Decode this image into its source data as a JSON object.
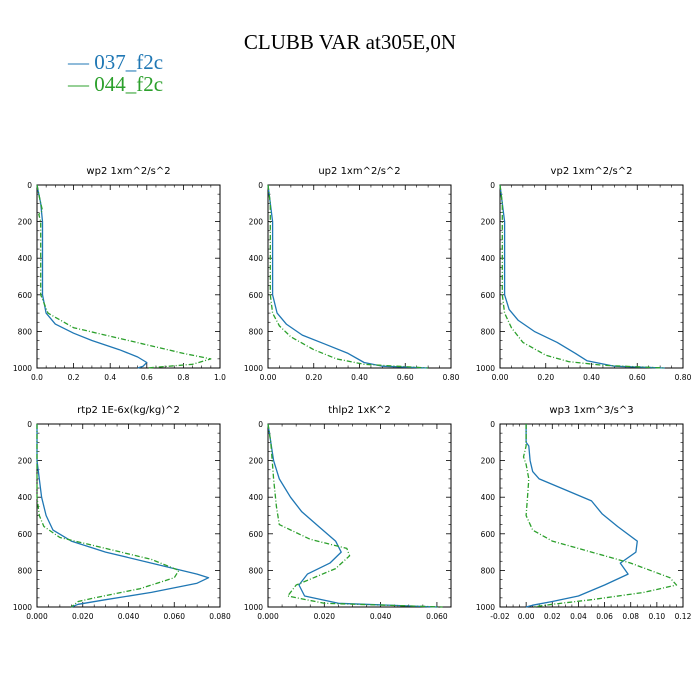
{
  "title": "CLUBB VAR at305E,0N",
  "legend": [
    {
      "label": "— 037_f2c",
      "color": "#1f77b4"
    },
    {
      "label": "— 044_f2c",
      "color": "#2ca02c"
    }
  ],
  "chart_data": [
    {
      "type": "line",
      "title": "wp2  1xm^2/s^2",
      "xlim": [
        0,
        1.0
      ],
      "ylim": [
        1000,
        0
      ],
      "xticks": [
        0.0,
        0.2,
        0.4,
        0.6,
        0.8,
        1.0
      ],
      "xtick_labels": [
        "0.0",
        "0.2",
        "0.4",
        "0.6",
        "0.8",
        "1.0"
      ],
      "yticks": [
        0,
        200,
        400,
        600,
        800,
        1000
      ],
      "ytick_labels": [
        "0",
        "200",
        "400",
        "600",
        "800",
        "1000"
      ],
      "series": [
        {
          "color": "#1f77b4",
          "dash": "solid",
          "points": [
            [
              0.0,
              0
            ],
            [
              0.01,
              50
            ],
            [
              0.02,
              100
            ],
            [
              0.03,
              200
            ],
            [
              0.03,
              400
            ],
            [
              0.03,
              600
            ],
            [
              0.05,
              700
            ],
            [
              0.1,
              760
            ],
            [
              0.2,
              810
            ],
            [
              0.3,
              850
            ],
            [
              0.45,
              900
            ],
            [
              0.55,
              940
            ],
            [
              0.6,
              970
            ],
            [
              0.58,
              990
            ],
            [
              0.55,
              1000
            ]
          ]
        },
        {
          "color": "#2ca02c",
          "dash": "dashed",
          "points": [
            [
              0.0,
              0
            ],
            [
              0.02,
              100
            ],
            [
              0.03,
              140
            ],
            [
              0.01,
              160
            ],
            [
              0.02,
              200
            ],
            [
              0.02,
              400
            ],
            [
              0.02,
              600
            ],
            [
              0.06,
              700
            ],
            [
              0.2,
              780
            ],
            [
              0.5,
              850
            ],
            [
              0.8,
              920
            ],
            [
              0.95,
              950
            ],
            [
              0.85,
              980
            ],
            [
              0.6,
              1000
            ]
          ]
        }
      ]
    },
    {
      "type": "line",
      "title": "up2  1xm^2/s^2",
      "xlim": [
        0,
        0.8
      ],
      "ylim": [
        1000,
        0
      ],
      "xticks": [
        0.0,
        0.2,
        0.4,
        0.6,
        0.8
      ],
      "xtick_labels": [
        "0.00",
        "0.20",
        "0.40",
        "0.60",
        "0.80"
      ],
      "yticks": [
        0,
        200,
        400,
        600,
        800,
        1000
      ],
      "ytick_labels": [
        "0",
        "200",
        "400",
        "600",
        "800",
        "1000"
      ],
      "series": [
        {
          "color": "#1f77b4",
          "dash": "solid",
          "points": [
            [
              0.0,
              0
            ],
            [
              0.01,
              100
            ],
            [
              0.02,
              200
            ],
            [
              0.02,
              400
            ],
            [
              0.02,
              600
            ],
            [
              0.04,
              700
            ],
            [
              0.08,
              760
            ],
            [
              0.15,
              820
            ],
            [
              0.25,
              870
            ],
            [
              0.35,
              920
            ],
            [
              0.42,
              970
            ],
            [
              0.5,
              990
            ],
            [
              0.7,
              1000
            ]
          ]
        },
        {
          "color": "#2ca02c",
          "dash": "dashed",
          "points": [
            [
              0.0,
              0
            ],
            [
              0.01,
              100
            ],
            [
              0.01,
              200
            ],
            [
              0.01,
              400
            ],
            [
              0.01,
              600
            ],
            [
              0.02,
              700
            ],
            [
              0.05,
              770
            ],
            [
              0.1,
              830
            ],
            [
              0.2,
              900
            ],
            [
              0.3,
              950
            ],
            [
              0.42,
              980
            ],
            [
              0.7,
              1000
            ]
          ]
        }
      ]
    },
    {
      "type": "line",
      "title": "vp2  1xm^2/s^2",
      "xlim": [
        0,
        0.8
      ],
      "ylim": [
        1000,
        0
      ],
      "xticks": [
        0.0,
        0.2,
        0.4,
        0.6,
        0.8
      ],
      "xtick_labels": [
        "0.00",
        "0.20",
        "0.40",
        "0.60",
        "0.80"
      ],
      "yticks": [
        0,
        200,
        400,
        600,
        800,
        1000
      ],
      "ytick_labels": [
        "0",
        "200",
        "400",
        "600",
        "800",
        "1000"
      ],
      "series": [
        {
          "color": "#1f77b4",
          "dash": "solid",
          "points": [
            [
              0.0,
              0
            ],
            [
              0.01,
              100
            ],
            [
              0.02,
              200
            ],
            [
              0.02,
              400
            ],
            [
              0.02,
              600
            ],
            [
              0.04,
              680
            ],
            [
              0.08,
              740
            ],
            [
              0.15,
              800
            ],
            [
              0.25,
              860
            ],
            [
              0.33,
              920
            ],
            [
              0.38,
              960
            ],
            [
              0.5,
              990
            ],
            [
              0.72,
              1000
            ]
          ]
        },
        {
          "color": "#2ca02c",
          "dash": "dashed",
          "points": [
            [
              0.0,
              0
            ],
            [
              0.01,
              100
            ],
            [
              0.01,
              200
            ],
            [
              0.01,
              400
            ],
            [
              0.01,
              600
            ],
            [
              0.02,
              700
            ],
            [
              0.05,
              780
            ],
            [
              0.1,
              860
            ],
            [
              0.2,
              930
            ],
            [
              0.3,
              965
            ],
            [
              0.45,
              985
            ],
            [
              0.72,
              1000
            ]
          ]
        }
      ]
    },
    {
      "type": "line",
      "title": "rtp2  1E-6x(kg/kg)^2",
      "xlim": [
        0,
        0.08
      ],
      "ylim": [
        1000,
        0
      ],
      "xticks": [
        0.0,
        0.02,
        0.04,
        0.06,
        0.08
      ],
      "xtick_labels": [
        "0.000",
        "0.020",
        "0.040",
        "0.060",
        "0.080"
      ],
      "yticks": [
        0,
        200,
        400,
        600,
        800,
        1000
      ],
      "ytick_labels": [
        "0",
        "200",
        "400",
        "600",
        "800",
        "1000"
      ],
      "series": [
        {
          "color": "#1f77b4",
          "dash": "solid",
          "points": [
            [
              0.0,
              0
            ],
            [
              0.0,
              200
            ],
            [
              0.001,
              300
            ],
            [
              0.002,
              400
            ],
            [
              0.004,
              500
            ],
            [
              0.007,
              580
            ],
            [
              0.015,
              640
            ],
            [
              0.03,
              700
            ],
            [
              0.05,
              760
            ],
            [
              0.07,
              820
            ],
            [
              0.075,
              840
            ],
            [
              0.07,
              870
            ],
            [
              0.05,
              920
            ],
            [
              0.03,
              960
            ],
            [
              0.018,
              985
            ],
            [
              0.015,
              1000
            ]
          ]
        },
        {
          "color": "#2ca02c",
          "dash": "dashed",
          "points": [
            [
              0.0,
              0
            ],
            [
              0.0,
              300
            ],
            [
              0.0,
              400
            ],
            [
              0.001,
              500
            ],
            [
              0.003,
              560
            ],
            [
              0.01,
              620
            ],
            [
              0.03,
              680
            ],
            [
              0.05,
              740
            ],
            [
              0.062,
              800
            ],
            [
              0.06,
              840
            ],
            [
              0.045,
              900
            ],
            [
              0.025,
              950
            ],
            [
              0.018,
              970
            ],
            [
              0.015,
              1000
            ]
          ]
        }
      ]
    },
    {
      "type": "line",
      "title": "thlp2  1xK^2",
      "xlim": [
        0,
        0.065
      ],
      "ylim": [
        1000,
        0
      ],
      "xticks": [
        0.0,
        0.02,
        0.04,
        0.06
      ],
      "xtick_labels": [
        "0.000",
        "0.020",
        "0.040",
        "0.060"
      ],
      "yticks": [
        0,
        200,
        400,
        600,
        800,
        1000
      ],
      "ytick_labels": [
        "0",
        "200",
        "400",
        "600",
        "800",
        "1000"
      ],
      "series": [
        {
          "color": "#1f77b4",
          "dash": "solid",
          "points": [
            [
              0.0,
              0
            ],
            [
              0.001,
              100
            ],
            [
              0.002,
              200
            ],
            [
              0.004,
              300
            ],
            [
              0.008,
              400
            ],
            [
              0.012,
              480
            ],
            [
              0.018,
              560
            ],
            [
              0.024,
              640
            ],
            [
              0.026,
              700
            ],
            [
              0.022,
              760
            ],
            [
              0.014,
              820
            ],
            [
              0.011,
              880
            ],
            [
              0.013,
              940
            ],
            [
              0.025,
              980
            ],
            [
              0.06,
              1000
            ]
          ]
        },
        {
          "color": "#2ca02c",
          "dash": "dashed",
          "points": [
            [
              0.0,
              0
            ],
            [
              0.001,
              100
            ],
            [
              0.002,
              300
            ],
            [
              0.003,
              450
            ],
            [
              0.004,
              550
            ],
            [
              0.015,
              630
            ],
            [
              0.028,
              680
            ],
            [
              0.029,
              720
            ],
            [
              0.024,
              790
            ],
            [
              0.01,
              880
            ],
            [
              0.007,
              940
            ],
            [
              0.02,
              980
            ],
            [
              0.062,
              1000
            ]
          ]
        }
      ]
    },
    {
      "type": "line",
      "title": "wp3  1xm^3/s^3",
      "xlim": [
        -0.02,
        0.12
      ],
      "ylim": [
        1000,
        0
      ],
      "xticks": [
        -0.02,
        0.0,
        0.02,
        0.04,
        0.06,
        0.08,
        0.1,
        0.12
      ],
      "xtick_labels": [
        "-0.02",
        "0.00",
        "0.02",
        "0.04",
        "0.06",
        "0.08",
        "0.10",
        "0.12"
      ],
      "yticks": [
        0,
        200,
        400,
        600,
        800,
        1000
      ],
      "ytick_labels": [
        "0",
        "200",
        "400",
        "600",
        "800",
        "1000"
      ],
      "series": [
        {
          "color": "#1f77b4",
          "dash": "solid",
          "points": [
            [
              0.0,
              0
            ],
            [
              0.0,
              100
            ],
            [
              0.002,
              120
            ],
            [
              0.003,
              200
            ],
            [
              0.005,
              260
            ],
            [
              0.01,
              300
            ],
            [
              0.03,
              360
            ],
            [
              0.05,
              420
            ],
            [
              0.058,
              490
            ],
            [
              0.07,
              560
            ],
            [
              0.085,
              640
            ],
            [
              0.084,
              700
            ],
            [
              0.072,
              760
            ],
            [
              0.078,
              820
            ],
            [
              0.06,
              880
            ],
            [
              0.04,
              940
            ],
            [
              0.02,
              970
            ],
            [
              0.005,
              990
            ],
            [
              0.0,
              1000
            ]
          ]
        },
        {
          "color": "#2ca02c",
          "dash": "dashed",
          "points": [
            [
              0.0,
              0
            ],
            [
              0.0,
              120
            ],
            [
              -0.002,
              180
            ],
            [
              0.0,
              220
            ],
            [
              0.002,
              300
            ],
            [
              0.001,
              400
            ],
            [
              0.0,
              500
            ],
            [
              0.005,
              580
            ],
            [
              0.02,
              640
            ],
            [
              0.05,
              700
            ],
            [
              0.08,
              760
            ],
            [
              0.11,
              840
            ],
            [
              0.115,
              880
            ],
            [
              0.09,
              920
            ],
            [
              0.05,
              960
            ],
            [
              0.02,
              985
            ],
            [
              0.005,
              1000
            ]
          ]
        }
      ]
    }
  ]
}
